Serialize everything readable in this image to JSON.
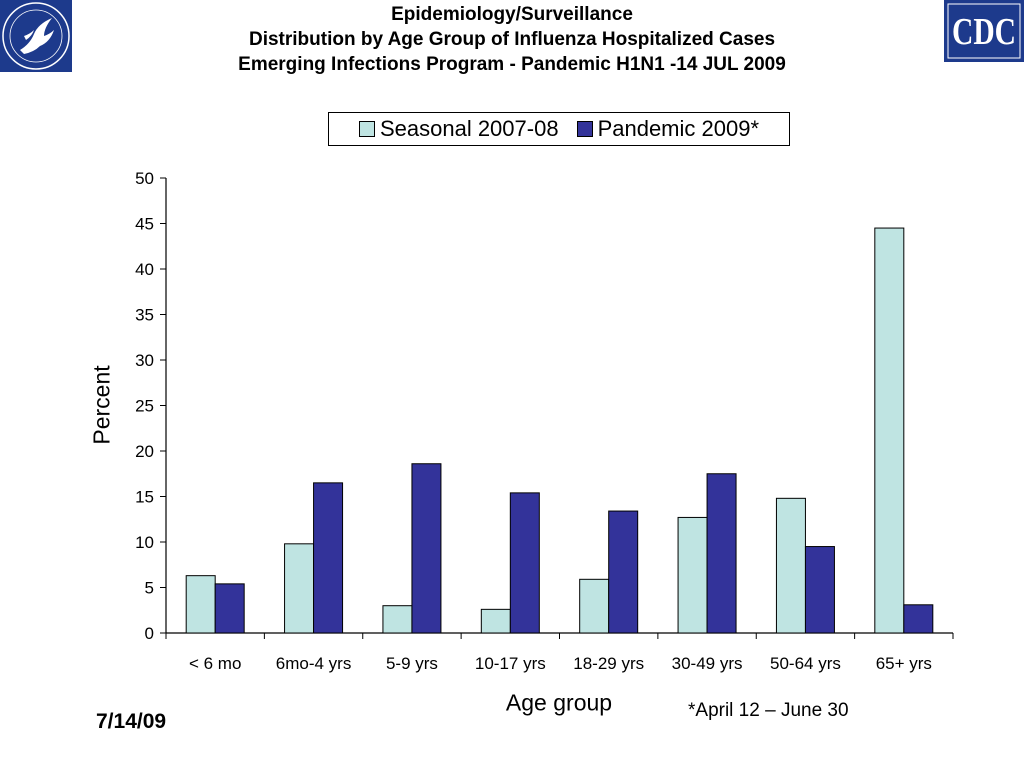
{
  "header": {
    "title_line1": "Epidemiology/Surveillance",
    "title_line2": "Distribution by Age Group of Influenza Hospitalized Cases",
    "title_line3": "Emerging Infections Program - Pandemic H1N1 -14 JUL 2009"
  },
  "logos": {
    "left": "hhs-eagle-icon",
    "right_text": "CDC"
  },
  "footnote": "*April 12 – June 30",
  "date": "7/14/09",
  "colors": {
    "seasonal": "#bfe4e2",
    "pandemic": "#33339a",
    "logo_blue": "#1d3a8c"
  },
  "chart_data": {
    "type": "bar",
    "title": "",
    "xlabel": "Age group",
    "ylabel": "Percent",
    "ylim": [
      0,
      50
    ],
    "yticks": [
      0,
      5,
      10,
      15,
      20,
      25,
      30,
      35,
      40,
      45,
      50
    ],
    "grid": false,
    "legend": "top",
    "categories": [
      "< 6 mo",
      "6mo-4 yrs",
      "5-9 yrs",
      "10-17 yrs",
      "18-29 yrs",
      "30-49 yrs",
      "50-64 yrs",
      "65+ yrs"
    ],
    "series": [
      {
        "name": "Seasonal 2007-08",
        "values": [
          6.3,
          9.8,
          3.0,
          2.6,
          5.9,
          12.7,
          14.8,
          44.5
        ]
      },
      {
        "name": "Pandemic 2009*",
        "values": [
          5.4,
          16.5,
          18.6,
          15.4,
          13.4,
          17.5,
          9.5,
          3.1
        ]
      }
    ]
  }
}
